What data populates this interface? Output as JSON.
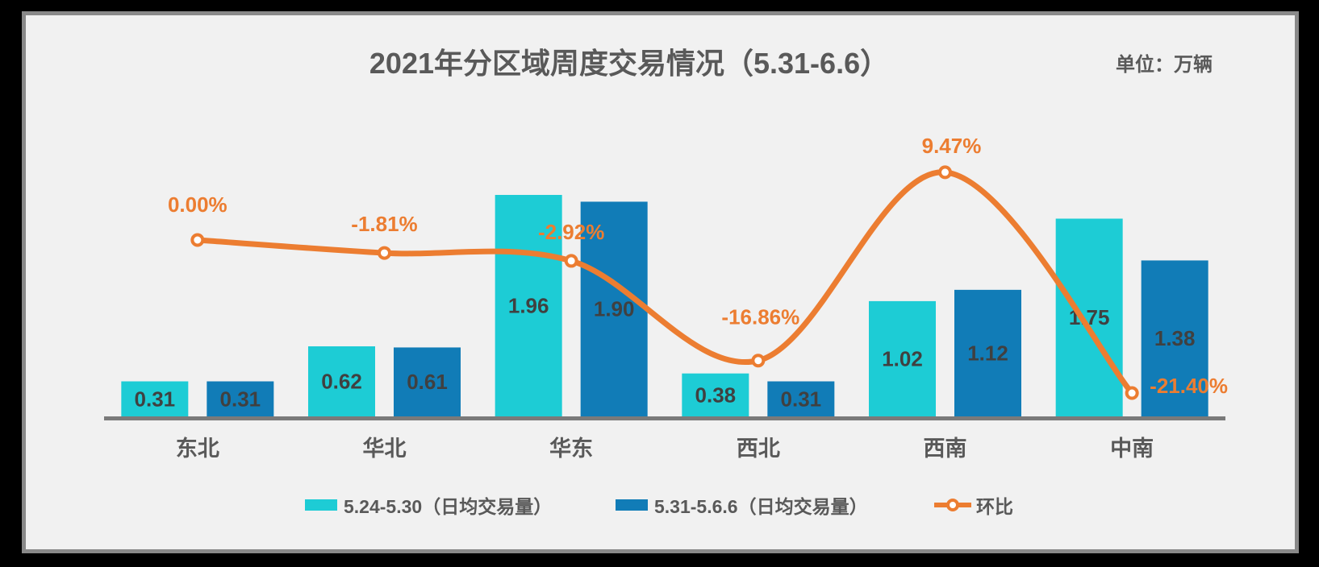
{
  "colors": {
    "cyan": "#1DCCD5",
    "blue": "#117CB7",
    "orange": "#EC7D31",
    "title_text": "#595959",
    "value_text": "#404040",
    "axis_line": "#7A7A7A",
    "panel_bg": "#F1F1F1",
    "panel_border": "#898989",
    "outer_bg": "#000000"
  },
  "header": {
    "title": "2021年分区域周度交易情况（5.31-6.6）",
    "unit_label": "单位：万辆"
  },
  "chart_data": {
    "type": "bar",
    "title": "2021年分区域周度交易情况（5.31-6.6）",
    "unit": "万辆",
    "categories": [
      "东北",
      "华北",
      "华东",
      "西北",
      "西南",
      "中南"
    ],
    "series": [
      {
        "name": "5.24-5.30（日均交易量）",
        "type": "bar",
        "color_key": "cyan",
        "values": [
          0.31,
          0.62,
          1.96,
          0.38,
          1.02,
          1.75
        ],
        "value_labels": [
          "0.31",
          "0.62",
          "1.96",
          "0.38",
          "1.02",
          "1.75"
        ]
      },
      {
        "name": "5.31-5.6.6（日均交易量）",
        "type": "bar",
        "color_key": "blue",
        "values": [
          0.31,
          0.61,
          1.9,
          0.31,
          1.12,
          1.38
        ],
        "value_labels": [
          "0.31",
          "0.61",
          "1.90",
          "0.31",
          "1.12",
          "1.38"
        ]
      },
      {
        "name": "环比",
        "type": "line",
        "color_key": "orange",
        "values": [
          0.0,
          -1.81,
          -2.92,
          -16.86,
          9.47,
          -21.4
        ],
        "value_labels": [
          "0.00%",
          "-1.81%",
          "-2.92%",
          "-16.86%",
          "9.47%",
          "-21.40%"
        ],
        "label_offsets": [
          [
            0,
            -35
          ],
          [
            0,
            -27
          ],
          [
            0,
            -27
          ],
          [
            3,
            -45
          ],
          [
            8,
            -24
          ],
          [
            22,
            0
          ]
        ],
        "label_anchors": [
          "middle",
          "middle",
          "middle",
          "middle",
          "middle",
          "start"
        ]
      }
    ],
    "ylim_bars": [
      0,
      2.2
    ],
    "grid": false,
    "y_axis_visible": false,
    "legend_position": "bottom"
  }
}
